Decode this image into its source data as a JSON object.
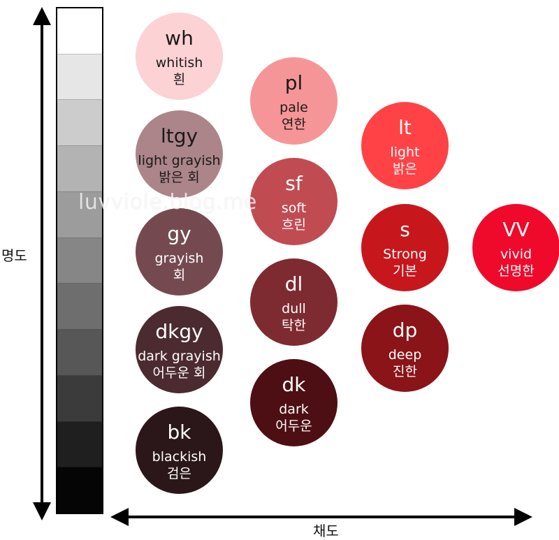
{
  "axes": {
    "vertical_label": "명도",
    "horizontal_label": "채도"
  },
  "grayscale": [
    "#ffffff",
    "#e6e6e6",
    "#cccccc",
    "#b3b3b3",
    "#9c9c9c",
    "#868686",
    "#6e6e6e",
    "#575757",
    "#3b3b3b",
    "#1f1f1f",
    "#050505"
  ],
  "tones": [
    {
      "abbr": "wh",
      "en": "whitish",
      "ko": "흰",
      "color": "#fcd2d4",
      "text_dark": true
    },
    {
      "abbr": "ltgy",
      "en": "light grayish",
      "ko": "밝은 회",
      "color": "#ab8589",
      "text_dark": true
    },
    {
      "abbr": "gy",
      "en": "grayish",
      "ko": "회",
      "color": "#744a50",
      "text_dark": false
    },
    {
      "abbr": "dkgy",
      "en": "dark grayish",
      "ko": "어두운 회",
      "color": "#4b2b2f",
      "text_dark": false
    },
    {
      "abbr": "bk",
      "en": "blackish",
      "ko": "검은",
      "color": "#2b1719",
      "text_dark": false
    },
    {
      "abbr": "pl",
      "en": "pale",
      "ko": "연한",
      "color": "#f69597",
      "text_dark": true
    },
    {
      "abbr": "sf",
      "en": "soft",
      "ko": "흐린",
      "color": "#c04c52",
      "text_dark": false
    },
    {
      "abbr": "dl",
      "en": "dull",
      "ko": "탁한",
      "color": "#7e2a31",
      "text_dark": false
    },
    {
      "abbr": "dk",
      "en": "dark",
      "ko": "어두운",
      "color": "#4d0f13",
      "text_dark": false
    },
    {
      "abbr": "lt",
      "en": "light",
      "ko": "밝은",
      "color": "#ff4246",
      "text_dark": false
    },
    {
      "abbr": "s",
      "en": "Strong",
      "ko": "기본",
      "color": "#c8171c",
      "text_dark": false
    },
    {
      "abbr": "dp",
      "en": "deep",
      "ko": "진한",
      "color": "#8a1418",
      "text_dark": false
    },
    {
      "abbr": "vv",
      "en": "vivid",
      "ko": "선명한",
      "color": "#ef0a2c",
      "text_dark": false,
      "abbr_display": "VV"
    }
  ],
  "watermark": "luvviole.blog.me"
}
